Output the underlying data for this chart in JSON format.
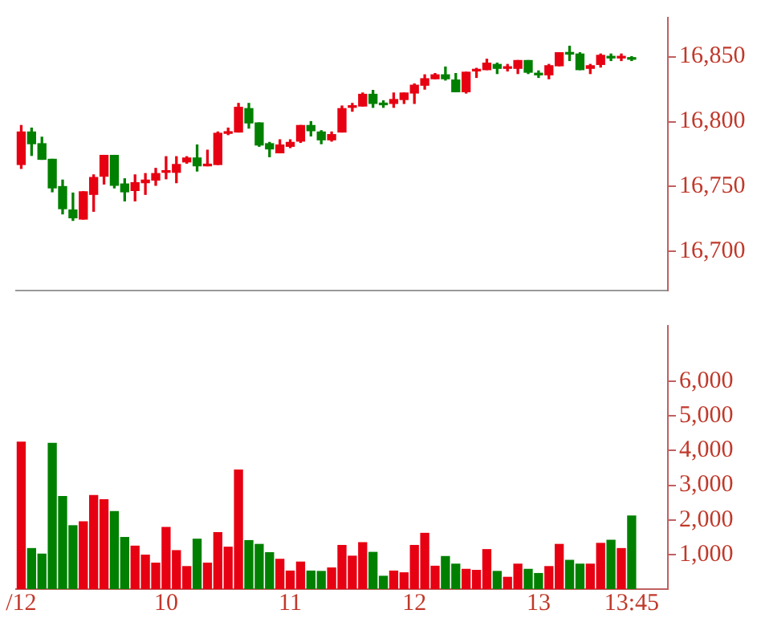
{
  "chart_data": [
    {
      "type": "candlestick",
      "categories": [
        null,
        null,
        null,
        null,
        null,
        null,
        null,
        null,
        null,
        null,
        null,
        null,
        null,
        null,
        null,
        null,
        null,
        null,
        null,
        null,
        null,
        null,
        null,
        null,
        null,
        null,
        null,
        null,
        null,
        null,
        null,
        null,
        null,
        null,
        null,
        null,
        null,
        null,
        null,
        null,
        null,
        null,
        null,
        null,
        null,
        null,
        null,
        null,
        null,
        null,
        null,
        null,
        null,
        null,
        null,
        null,
        null,
        null,
        null,
        null
      ],
      "ohlc": [
        [
          16767,
          16797,
          16764,
          16792
        ],
        [
          16792,
          16795,
          16774,
          16783
        ],
        [
          16783,
          16788,
          16771,
          16771
        ],
        [
          16771,
          16771,
          16746,
          16749
        ],
        [
          16750,
          16755,
          16729,
          16733
        ],
        [
          16732,
          16745,
          16724,
          16726
        ],
        [
          16725,
          16746,
          16725,
          16746
        ],
        [
          16744,
          16759,
          16731,
          16757
        ],
        [
          16758,
          16774,
          16752,
          16774
        ],
        [
          16774,
          16774,
          16749,
          16751
        ],
        [
          16752,
          16756,
          16739,
          16746
        ],
        [
          16747,
          16759,
          16739,
          16753
        ],
        [
          16753,
          16760,
          16744,
          16755
        ],
        [
          16755,
          16764,
          16751,
          16760
        ],
        [
          16761,
          16773,
          16756,
          16762
        ],
        [
          16761,
          16773,
          16753,
          16767
        ],
        [
          16769,
          16773,
          16768,
          16772
        ],
        [
          16772,
          16782,
          16762,
          16766
        ],
        [
          16766,
          16778,
          16766,
          16767
        ],
        [
          16767,
          16792,
          16767,
          16791
        ],
        [
          16791,
          16795,
          16790,
          16792
        ],
        [
          16792,
          16814,
          16792,
          16811
        ],
        [
          16810,
          16814,
          16795,
          16799
        ],
        [
          16799,
          16799,
          16781,
          16782
        ],
        [
          16783,
          16784,
          16773,
          16779
        ],
        [
          16776,
          16786,
          16776,
          16782
        ],
        [
          16781,
          16786,
          16780,
          16784
        ],
        [
          16785,
          16797,
          16784,
          16797
        ],
        [
          16797,
          16800,
          16789,
          16793
        ],
        [
          16792,
          16793,
          16783,
          16786
        ],
        [
          16786,
          16792,
          16785,
          16790
        ],
        [
          16792,
          16812,
          16792,
          16810
        ],
        [
          16811,
          16814,
          16808,
          16812
        ],
        [
          16812,
          16822,
          16812,
          16821
        ],
        [
          16821,
          16824,
          16811,
          16814
        ],
        [
          16814,
          16816,
          16811,
          16813
        ],
        [
          16814,
          16822,
          16811,
          16817
        ],
        [
          16817,
          16822,
          16814,
          16822
        ],
        [
          16822,
          16829,
          16814,
          16828
        ],
        [
          16828,
          16836,
          16825,
          16833
        ],
        [
          16833,
          16837,
          16833,
          16836
        ],
        [
          16836,
          16842,
          16832,
          16833
        ],
        [
          16832,
          16837,
          16823,
          16823
        ],
        [
          16823,
          16838,
          16822,
          16838
        ],
        [
          16839,
          16841,
          16834,
          16840
        ],
        [
          16840,
          16848,
          16840,
          16845
        ],
        [
          16844,
          16845,
          16837,
          16841
        ],
        [
          16841,
          16844,
          16839,
          16842
        ],
        [
          16841,
          16847,
          16837,
          16847
        ],
        [
          16847,
          16847,
          16837,
          16838
        ],
        [
          16837,
          16839,
          16834,
          16836
        ],
        [
          16836,
          16844,
          16833,
          16843
        ],
        [
          16843,
          16853,
          16843,
          16853
        ],
        [
          16853,
          16858,
          16847,
          16852
        ],
        [
          16852,
          16853,
          16840,
          16840
        ],
        [
          16841,
          16844,
          16837,
          16843
        ],
        [
          16844,
          16852,
          16842,
          16851
        ],
        [
          16850,
          16852,
          16847,
          16849
        ],
        [
          16849,
          16852,
          16847,
          16850
        ],
        [
          16849,
          16850,
          16847,
          16848
        ]
      ],
      "colors": [
        "#e60012",
        "#008000",
        "#008000",
        "#008000",
        "#008000",
        "#008000",
        "#e60012",
        "#e60012",
        "#e60012",
        "#008000",
        "#008000",
        "#e60012",
        "#e60012",
        "#e60012",
        "#e60012",
        "#e60012",
        "#e60012",
        "#008000",
        "#e60012",
        "#e60012",
        "#e60012",
        "#e60012",
        "#008000",
        "#008000",
        "#008000",
        "#e60012",
        "#e60012",
        "#e60012",
        "#008000",
        "#008000",
        "#e60012",
        "#e60012",
        "#e60012",
        "#e60012",
        "#008000",
        "#008000",
        "#e60012",
        "#e60012",
        "#e60012",
        "#e60012",
        "#e60012",
        "#008000",
        "#008000",
        "#e60012",
        "#e60012",
        "#e60012",
        "#008000",
        "#e60012",
        "#e60012",
        "#008000",
        "#008000",
        "#e60012",
        "#e60012",
        "#008000",
        "#008000",
        "#e60012",
        "#e60012",
        "#008000",
        "#e60012",
        "#008000"
      ],
      "ylim": [
        16670,
        16880
      ],
      "yticks": [
        {
          "value": 16700,
          "label": "16,700"
        },
        {
          "value": 16750,
          "label": "16,750"
        },
        {
          "value": 16800,
          "label": "16,800"
        },
        {
          "value": 16850,
          "label": "16,850"
        }
      ]
    },
    {
      "type": "bar",
      "categories": [
        "/12",
        null,
        null,
        null,
        null,
        null,
        null,
        null,
        null,
        null,
        null,
        null,
        null,
        null,
        "10",
        null,
        null,
        null,
        null,
        null,
        null,
        null,
        null,
        null,
        null,
        null,
        "11",
        null,
        null,
        null,
        null,
        null,
        null,
        null,
        null,
        null,
        null,
        null,
        "12",
        null,
        null,
        null,
        null,
        null,
        null,
        null,
        null,
        null,
        null,
        null,
        "13",
        null,
        null,
        null,
        null,
        null,
        null,
        null,
        null,
        "13:45"
      ],
      "values": [
        4240,
        1170,
        1010,
        4210,
        2670,
        1830,
        1940,
        2700,
        2580,
        2240,
        1490,
        1240,
        980,
        750,
        1780,
        1110,
        650,
        1440,
        750,
        1630,
        1210,
        3440,
        1400,
        1290,
        1050,
        860,
        520,
        780,
        520,
        510,
        610,
        1260,
        950,
        1340,
        1060,
        370,
        520,
        470,
        1260,
        1610,
        660,
        940,
        720,
        570,
        540,
        1140,
        510,
        340,
        720,
        570,
        450,
        650,
        1290,
        830,
        720,
        720,
        1320,
        1410,
        1170,
        2110
      ],
      "colors": [
        "#e60012",
        "#008000",
        "#008000",
        "#008000",
        "#008000",
        "#008000",
        "#e60012",
        "#e60012",
        "#e60012",
        "#008000",
        "#008000",
        "#e60012",
        "#e60012",
        "#e60012",
        "#e60012",
        "#e60012",
        "#e60012",
        "#008000",
        "#e60012",
        "#e60012",
        "#e60012",
        "#e60012",
        "#008000",
        "#008000",
        "#008000",
        "#e60012",
        "#e60012",
        "#e60012",
        "#008000",
        "#008000",
        "#e60012",
        "#e60012",
        "#e60012",
        "#e60012",
        "#008000",
        "#008000",
        "#e60012",
        "#e60012",
        "#e60012",
        "#e60012",
        "#e60012",
        "#008000",
        "#008000",
        "#e60012",
        "#e60012",
        "#e60012",
        "#008000",
        "#e60012",
        "#e60012",
        "#008000",
        "#008000",
        "#e60012",
        "#e60012",
        "#008000",
        "#008000",
        "#e60012",
        "#e60012",
        "#008000",
        "#e60012",
        "#008000"
      ],
      "ylim": [
        0,
        7600
      ],
      "yticks": [
        {
          "value": 1000,
          "label": "1,000"
        },
        {
          "value": 2000,
          "label": "2,000"
        },
        {
          "value": 3000,
          "label": "3,000"
        },
        {
          "value": 4000,
          "label": "4,000"
        },
        {
          "value": 5000,
          "label": "5,000"
        },
        {
          "value": 6000,
          "label": "6,000"
        }
      ]
    }
  ]
}
